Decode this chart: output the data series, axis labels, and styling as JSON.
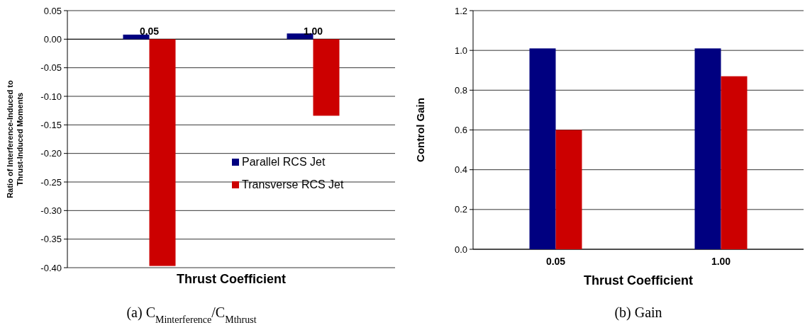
{
  "chart_data": [
    {
      "type": "bar",
      "title": "(a) C$_{Minterference}$/C$_{Mthrust}$",
      "categories": [
        "0.05",
        "1.00"
      ],
      "xlabel": "Thrust Coefficient",
      "ylabel": "Ratio of Interference-Induced to\nThrust-Induced Moments",
      "series": [
        {
          "name": "Parallel RCS Jet",
          "color": "#000080",
          "values": [
            0.008,
            0.01
          ]
        },
        {
          "name": "Transverse RCS Jet",
          "color": "#cc0000",
          "values": [
            -0.397,
            -0.134
          ]
        }
      ],
      "ylim": [
        -0.4,
        0.05
      ],
      "yticks": [
        {
          "value": 0.05,
          "label": "0.05"
        },
        {
          "value": 0,
          "label": "0.00"
        },
        {
          "value": -0.05,
          "label": "-0.05"
        },
        {
          "value": -0.1,
          "label": "-0.10"
        },
        {
          "value": -0.15,
          "label": "-0.15"
        },
        {
          "value": -0.2,
          "label": "-0.20"
        },
        {
          "value": -0.25,
          "label": "-0.25"
        },
        {
          "value": -0.3,
          "label": "-0.30"
        },
        {
          "value": -0.35,
          "label": "-0.35"
        },
        {
          "value": -0.4,
          "label": "-0.40"
        }
      ],
      "grid": "y",
      "legend": "right"
    },
    {
      "type": "bar",
      "title": "(b) Gain",
      "categories": [
        "0.05",
        "1.00"
      ],
      "xlabel": "Thrust Coefficient",
      "ylabel": "Control Gain",
      "series": [
        {
          "color": "#000080",
          "values": [
            1.01,
            1.01
          ]
        },
        {
          "color": "#cc0000",
          "values": [
            0.6,
            0.87
          ]
        }
      ],
      "ylim": [
        0,
        1.2
      ],
      "yticks": [
        {
          "value": 0,
          "label": "0.0"
        },
        {
          "value": 0.2,
          "label": "0.2"
        },
        {
          "value": 0.4,
          "label": "0.4"
        },
        {
          "value": 0.6,
          "label": "0.6"
        },
        {
          "value": 0.8,
          "label": "0.8"
        },
        {
          "value": 1,
          "label": "1.0"
        },
        {
          "value": 1.2,
          "label": "1.2"
        }
      ],
      "grid": "y"
    }
  ]
}
